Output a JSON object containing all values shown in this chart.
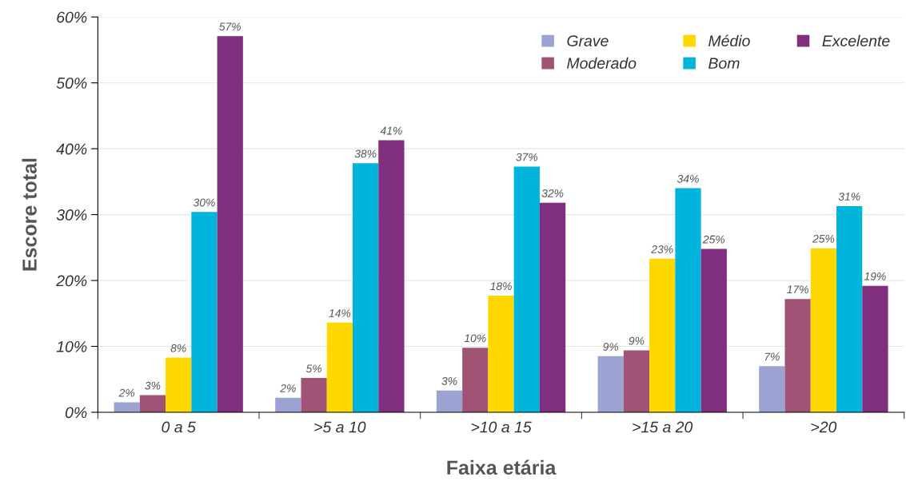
{
  "chart_data": {
    "type": "bar",
    "xlabel": "Faixa etária",
    "ylabel": "Escore total",
    "categories": [
      "0 a 5",
      ">5 a 10",
      ">10 a 15",
      ">15 a 20",
      ">20"
    ],
    "series": [
      {
        "name": "Grave",
        "color": "#9ba3d3",
        "values": [
          1.5,
          2.2,
          3.3,
          8.5,
          7.0
        ],
        "value_labels": [
          "2%",
          "2%",
          "3%",
          "9%",
          "7%"
        ]
      },
      {
        "name": "Moderado",
        "color": "#a05374",
        "values": [
          2.6,
          5.2,
          9.8,
          9.4,
          17.2
        ],
        "value_labels": [
          "3%",
          "5%",
          "10%",
          "9%",
          "17%"
        ]
      },
      {
        "name": "Médio",
        "color": "#ffd800",
        "values": [
          8.3,
          13.6,
          17.7,
          23.3,
          24.9
        ],
        "value_labels": [
          "8%",
          "14%",
          "18%",
          "23%",
          "25%"
        ]
      },
      {
        "name": "Bom",
        "color": "#00b4dc",
        "values": [
          30.4,
          37.8,
          37.3,
          34.0,
          31.3
        ],
        "value_labels": [
          "30%",
          "38%",
          "37%",
          "34%",
          "31%"
        ]
      },
      {
        "name": "Excelente",
        "color": "#7f2f7e",
        "values": [
          57.1,
          41.3,
          31.8,
          24.8,
          19.2
        ],
        "value_labels": [
          "57%",
          "41%",
          "32%",
          "25%",
          "19%"
        ]
      }
    ],
    "ylim": [
      0,
      60
    ],
    "yticks": [
      {
        "value": 0,
        "label": "0%"
      },
      {
        "value": 10,
        "label": "10%"
      },
      {
        "value": 20,
        "label": "20%"
      },
      {
        "value": 30,
        "label": "30%"
      },
      {
        "value": 40,
        "label": "40%"
      },
      {
        "value": 50,
        "label": "50%"
      },
      {
        "value": 60,
        "label": "60%"
      }
    ],
    "grid": "y",
    "legend": "top right"
  }
}
